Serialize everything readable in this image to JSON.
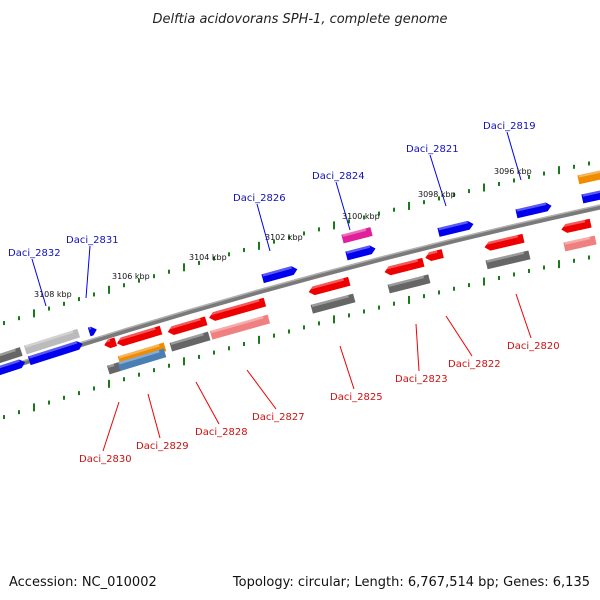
{
  "title": "Delftia acidovorans SPH-1, complete genome",
  "footer": {
    "accession": "Accession: NC_010002",
    "summary": "Topology: circular; Length: 6,767,514 bp; Genes: 6,135"
  },
  "ticks": [
    "3108 kbp",
    "3106 kbp",
    "3104 kbp",
    "3102 kbp",
    "3100 kbp",
    "3098 kbp",
    "3096 kbp"
  ],
  "genes_upper": [
    "Daci_2832",
    "Daci_2831",
    "Daci_2826",
    "Daci_2824",
    "Daci_2821",
    "Daci_2819"
  ],
  "genes_lower": [
    "Daci_2830",
    "Daci_2829",
    "Daci_2828",
    "Daci_2827",
    "Daci_2825",
    "Daci_2823",
    "Daci_2822",
    "Daci_2820"
  ],
  "colors": {
    "forward": "#0000ee",
    "reverse": "#ee0000",
    "reverse_light": "#f08080",
    "gray": "#666666",
    "gray_light": "#bbbbbb",
    "magenta": "#e0209a",
    "orange": "#f08c00",
    "steel": "#4a7fb5",
    "backbone": "#888888",
    "tick": "#1a7a1a"
  }
}
